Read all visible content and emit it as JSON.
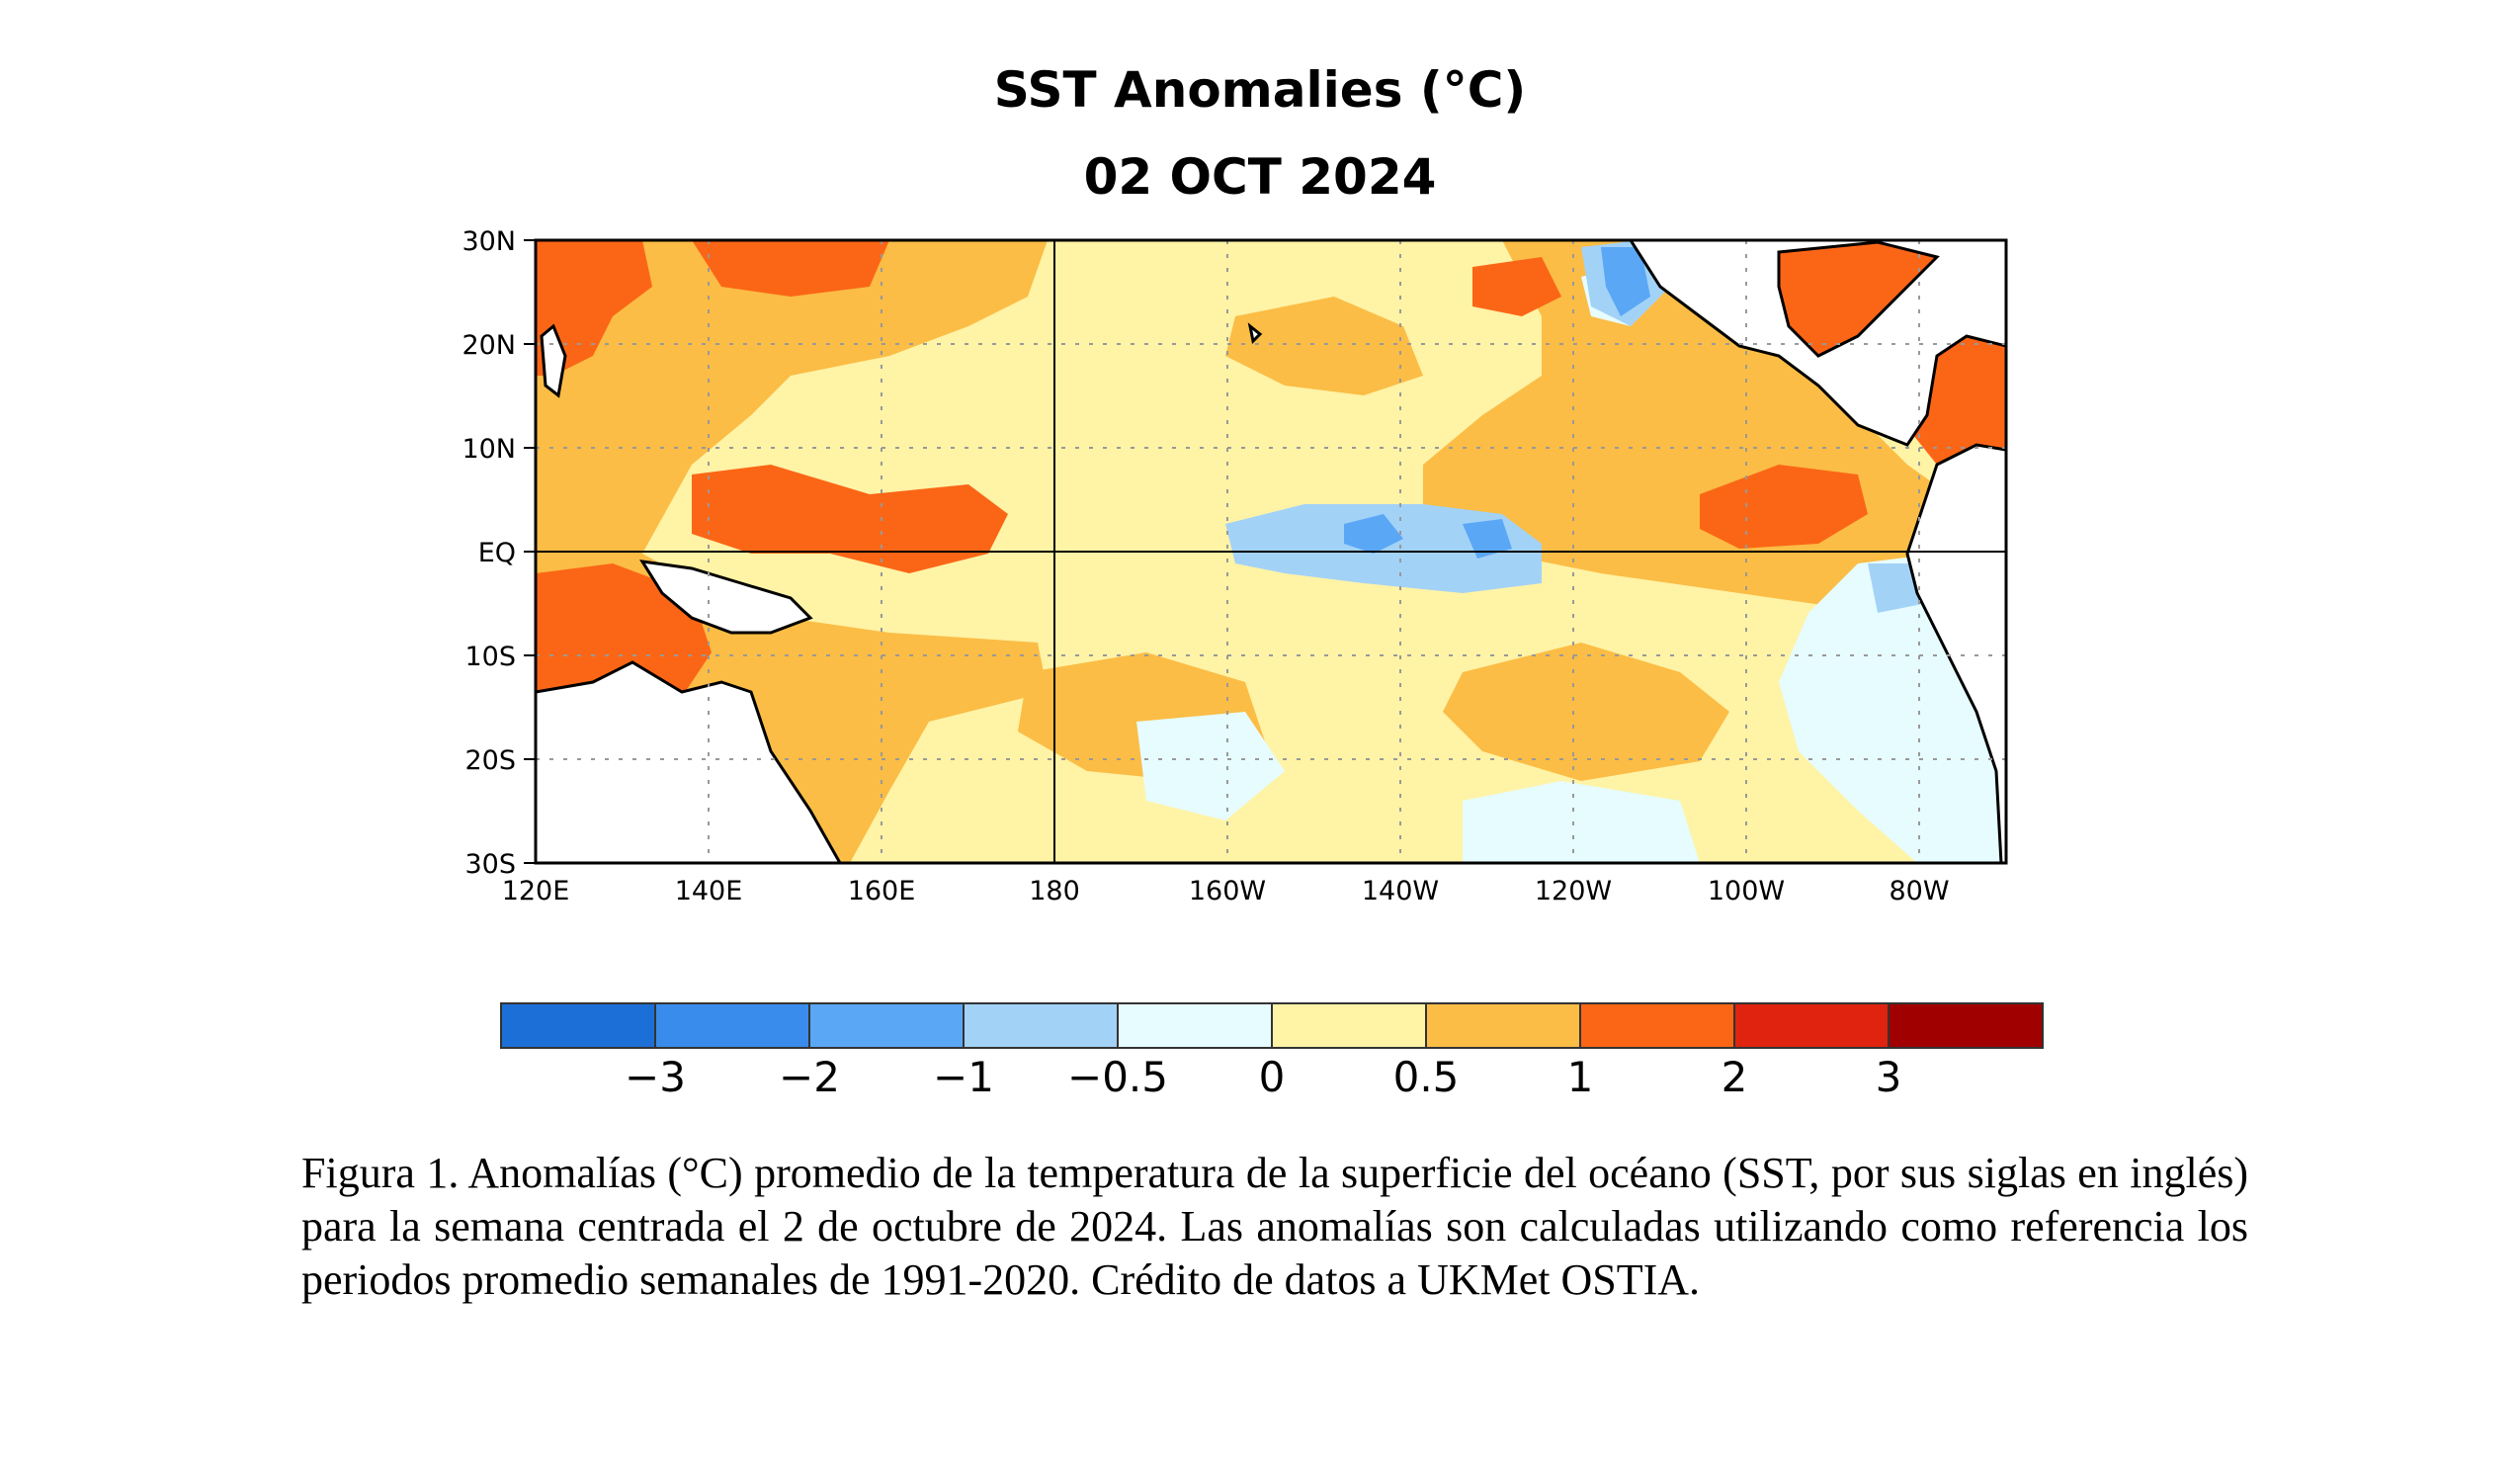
{
  "figure": {
    "title": "SST Anomalies (°C)",
    "date": "02 OCT 2024",
    "caption": "Figura 1. Anomalías (°C) promedio de la temperatura de la superficie del océano (SST, por sus siglas en inglés) para la semana centrada el 2 de octubre de 2024. Las anomalías son calculadas utilizando como referencia los periodos promedio semanales de 1991-2020. Crédito de datos a UKMet OSTIA."
  },
  "map": {
    "lat_range": [
      -30,
      30
    ],
    "lon_range_east": [
      120,
      290
    ],
    "lat_ticks": [
      "30N",
      "20N",
      "10N",
      "EQ",
      "10S",
      "20S",
      "30S"
    ],
    "lon_ticks": [
      "120E",
      "140E",
      "160E",
      "180",
      "160W",
      "140W",
      "120W",
      "100W",
      "80W"
    ],
    "gridlines": "dotted",
    "land_color": "#ffffff"
  },
  "colorbar": {
    "colors": [
      "#1c6fd6",
      "#3a8cec",
      "#5aa7f5",
      "#a3d2f7",
      "#e6fcff",
      "#fff3a6",
      "#fbbd45",
      "#fb6616",
      "#e0230e",
      "#a10000"
    ],
    "labels": [
      "−3",
      "−2",
      "−1",
      "−0.5",
      "0",
      "0.5",
      "1",
      "2",
      "3"
    ]
  }
}
